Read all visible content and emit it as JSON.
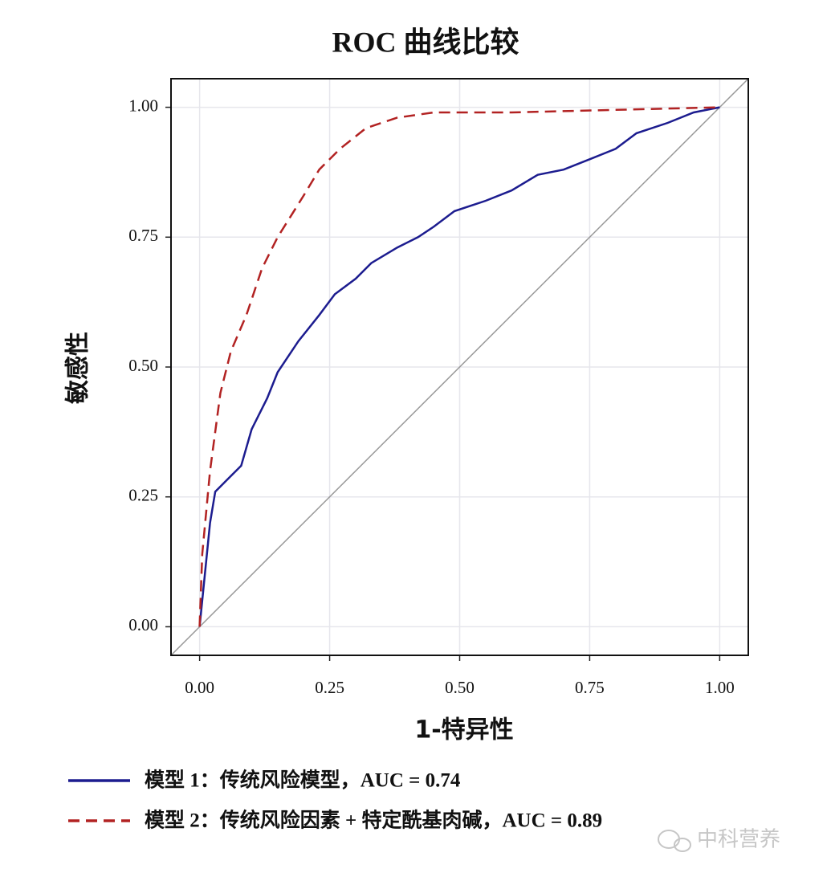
{
  "chart_data": {
    "type": "line",
    "title": "ROC 曲线比较",
    "x_label": "1-特异性",
    "y_label": "敏感性",
    "xlim": [
      -0.055,
      1.055
    ],
    "ylim": [
      -0.055,
      1.055
    ],
    "xticks": [
      {
        "value": 0,
        "label": "0.00"
      },
      {
        "value": 0.25,
        "label": "0.25"
      },
      {
        "value": 0.5,
        "label": "0.50"
      },
      {
        "value": 0.75,
        "label": "0.75"
      },
      {
        "value": 1,
        "label": "1.00"
      }
    ],
    "yticks": [
      {
        "value": 0,
        "label": "0.00"
      },
      {
        "value": 0.25,
        "label": "0.25"
      },
      {
        "value": 0.5,
        "label": "0.50"
      },
      {
        "value": 0.75,
        "label": "0.75"
      },
      {
        "value": 1,
        "label": "1.00"
      }
    ],
    "grid": true,
    "series": [
      {
        "name": "模型 1：传统风险模型，AUC = 0.74",
        "color": "#1c1c8f",
        "dash": false,
        "x": [
          0,
          0.01,
          0.02,
          0.03,
          0.05,
          0.08,
          0.1,
          0.13,
          0.15,
          0.19,
          0.23,
          0.26,
          0.3,
          0.33,
          0.38,
          0.42,
          0.45,
          0.49,
          0.55,
          0.6,
          0.65,
          0.7,
          0.75,
          0.8,
          0.84,
          0.9,
          0.95,
          1
        ],
        "values": [
          0,
          0.1,
          0.2,
          0.26,
          0.28,
          0.31,
          0.38,
          0.44,
          0.49,
          0.55,
          0.6,
          0.64,
          0.67,
          0.7,
          0.73,
          0.75,
          0.77,
          0.8,
          0.82,
          0.84,
          0.87,
          0.88,
          0.9,
          0.92,
          0.95,
          0.97,
          0.99,
          1
        ]
      },
      {
        "name": "模型 2：传统风险因素 + 特定酰基肉碱，AUC = 0.89",
        "color": "#b22222",
        "dash": true,
        "x": [
          0,
          0.005,
          0.02,
          0.04,
          0.06,
          0.09,
          0.12,
          0.15,
          0.2,
          0.23,
          0.27,
          0.32,
          0.38,
          0.45,
          0.6,
          0.8,
          1
        ],
        "values": [
          0,
          0.14,
          0.3,
          0.45,
          0.53,
          0.6,
          0.69,
          0.75,
          0.83,
          0.88,
          0.92,
          0.96,
          0.98,
          0.99,
          0.99,
          0.995,
          1
        ]
      }
    ],
    "watermark": "中科营养"
  }
}
